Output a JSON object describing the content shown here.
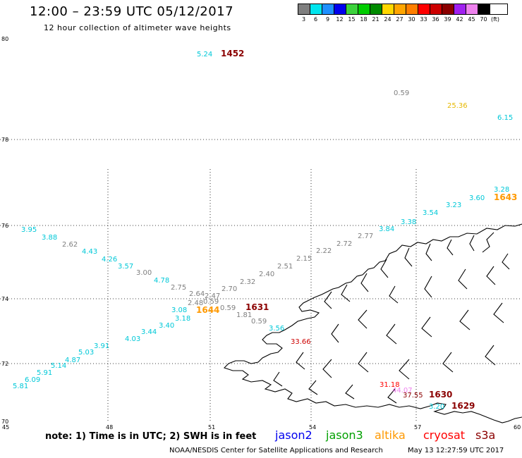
{
  "title": "12:00 – 23:59 UTC 05/12/2017",
  "subtitle": "12 hour collection of altimeter wave heights",
  "legend": {
    "unit": "(ft)",
    "items": [
      {
        "label": "3",
        "color": "#7f7f7f"
      },
      {
        "label": "6",
        "color": "#00e5ee"
      },
      {
        "label": "9",
        "color": "#1e90ff"
      },
      {
        "label": "12",
        "color": "#0000ee"
      },
      {
        "label": "15",
        "color": "#3cd23c"
      },
      {
        "label": "18",
        "color": "#00cd00"
      },
      {
        "label": "21",
        "color": "#008b00"
      },
      {
        "label": "24",
        "color": "#ffd700"
      },
      {
        "label": "27",
        "color": "#ffa500"
      },
      {
        "label": "30",
        "color": "#ff7f00"
      },
      {
        "label": "33",
        "color": "#ff0000"
      },
      {
        "label": "36",
        "color": "#cd0000"
      },
      {
        "label": "39",
        "color": "#8b0000"
      },
      {
        "label": "42",
        "color": "#a020f0"
      },
      {
        "label": "45",
        "color": "#ee82ee"
      },
      {
        "label": "70",
        "color": "#000000"
      }
    ]
  },
  "axes": {
    "lat_ticks": [
      "80",
      "78",
      "76",
      "74",
      "72",
      "70"
    ],
    "lon_ticks": [
      "45",
      "48",
      "51",
      "54",
      "57",
      "60"
    ]
  },
  "observations": [
    {
      "text": "5.24",
      "color": "#00c8d8"
    },
    {
      "text": "1452",
      "color": "#8b0000",
      "bold": true
    },
    {
      "text": "0.59",
      "color": "#7f7f7f"
    },
    {
      "text": "25.36",
      "color": "#e6b800"
    },
    {
      "text": "6.15",
      "color": "#00c8d8"
    },
    {
      "text": "3.28",
      "color": "#00c8d8"
    },
    {
      "text": "1643",
      "color": "#ff9900",
      "bold": true
    },
    {
      "text": "3.60",
      "color": "#00c8d8"
    },
    {
      "text": "3.23",
      "color": "#00c8d8"
    },
    {
      "text": "3.54",
      "color": "#00c8d8"
    },
    {
      "text": "3.38",
      "color": "#00c8d8"
    },
    {
      "text": "3.84",
      "color": "#00c8d8"
    },
    {
      "text": "2.77",
      "color": "#7f7f7f"
    },
    {
      "text": "2.72",
      "color": "#7f7f7f"
    },
    {
      "text": "2.22",
      "color": "#7f7f7f"
    },
    {
      "text": "2.15",
      "color": "#7f7f7f"
    },
    {
      "text": "2.51",
      "color": "#7f7f7f"
    },
    {
      "text": "2.40",
      "color": "#7f7f7f"
    },
    {
      "text": "2.32",
      "color": "#7f7f7f"
    },
    {
      "text": "2.70",
      "color": "#7f7f7f"
    },
    {
      "text": "2.47",
      "color": "#7f7f7f"
    },
    {
      "text": "2.64",
      "color": "#7f7f7f"
    },
    {
      "text": "0.59",
      "color": "#7f7f7f"
    },
    {
      "text": "2.48",
      "color": "#7f7f7f"
    },
    {
      "text": "2.75",
      "color": "#7f7f7f"
    },
    {
      "text": "3.95",
      "color": "#00c8d8"
    },
    {
      "text": "3.88",
      "color": "#00c8d8"
    },
    {
      "text": "2.62",
      "color": "#7f7f7f"
    },
    {
      "text": "4.43",
      "color": "#00c8d8"
    },
    {
      "text": "4.26",
      "color": "#00c8d8"
    },
    {
      "text": "3.57",
      "color": "#00c8d8"
    },
    {
      "text": "3.00",
      "color": "#7f7f7f"
    },
    {
      "text": "4.78",
      "color": "#00c8d8"
    },
    {
      "text": "3.08",
      "color": "#00c8d8"
    },
    {
      "text": "1644",
      "color": "#ff9900",
      "bold": true
    },
    {
      "text": "0.59",
      "color": "#7f7f7f"
    },
    {
      "text": "1631",
      "color": "#8b0000",
      "bold": true
    },
    {
      "text": "1.81",
      "color": "#7f7f7f"
    },
    {
      "text": "0.59",
      "color": "#7f7f7f"
    },
    {
      "text": "3.56",
      "color": "#00c8d8"
    },
    {
      "text": "33.66",
      "color": "#cd0000"
    },
    {
      "text": "3.18",
      "color": "#00c8d8"
    },
    {
      "text": "3.40",
      "color": "#00c8d8"
    },
    {
      "text": "3.44",
      "color": "#00c8d8"
    },
    {
      "text": "4.03",
      "color": "#00c8d8"
    },
    {
      "text": "3.91",
      "color": "#00c8d8"
    },
    {
      "text": "5.03",
      "color": "#00c8d8"
    },
    {
      "text": "4.87",
      "color": "#00c8d8"
    },
    {
      "text": "5.14",
      "color": "#00c8d8"
    },
    {
      "text": "5.91",
      "color": "#00c8d8"
    },
    {
      "text": "6.09",
      "color": "#00c8d8"
    },
    {
      "text": "5.81",
      "color": "#00c8d8"
    },
    {
      "text": "31.18",
      "color": "#ff0000"
    },
    {
      "text": "44.07",
      "color": "#ee82ee"
    },
    {
      "text": "37.55",
      "color": "#8b0000"
    },
    {
      "text": "1630",
      "color": "#8b0000",
      "bold": true
    },
    {
      "text": "3.20",
      "color": "#00c8d8"
    },
    {
      "text": "1629",
      "color": "#8b0000",
      "bold": true
    }
  ],
  "footer": {
    "note": "note:  1) Time is in UTC;  2) SWH is in feet",
    "satellites": [
      {
        "name": "jason2",
        "color": "#0000ee"
      },
      {
        "name": "jason3",
        "color": "#00a000"
      },
      {
        "name": "altika",
        "color": "#ff9900"
      },
      {
        "name": "cryosat",
        "color": "#ff0000"
      },
      {
        "name": "s3a",
        "color": "#8b0000"
      }
    ],
    "credit": "NOAA/NESDIS Center for Satellite Applications and Research",
    "generated": "May 13 12:27:59 UTC 2017"
  }
}
